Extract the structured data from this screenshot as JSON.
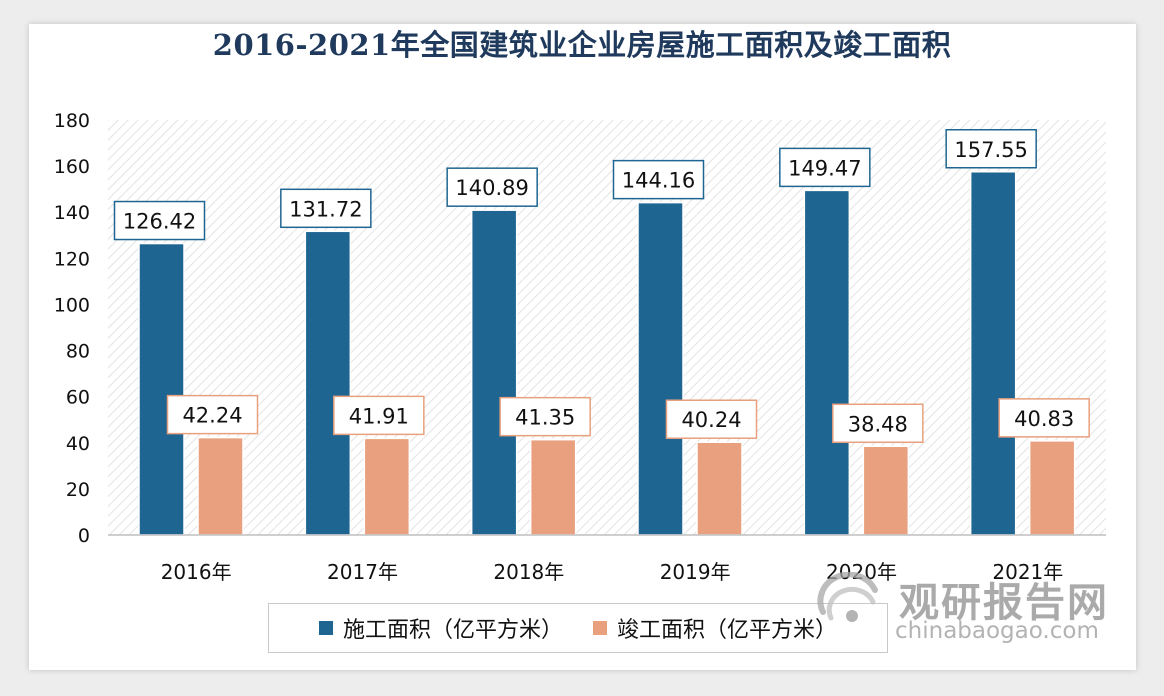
{
  "chart_data": {
    "type": "bar",
    "title": "2016-2021年全国建筑业企业房屋施工面积及竣工面积",
    "categories": [
      "2016年",
      "2017年",
      "2018年",
      "2019年",
      "2020年",
      "2021年"
    ],
    "series": [
      {
        "name": "施工面积（亿平方米）",
        "values": [
          126.42,
          131.72,
          140.89,
          144.16,
          149.47,
          157.55
        ],
        "color": "#1f6591"
      },
      {
        "name": "竣工面积（亿平方米）",
        "values": [
          42.24,
          41.91,
          41.35,
          40.24,
          38.48,
          40.83
        ],
        "color": "#e8a07e"
      }
    ],
    "ylim": [
      0,
      180
    ],
    "yticks": [
      0,
      20,
      40,
      60,
      80,
      100,
      120,
      140,
      160,
      180
    ],
    "grid": false,
    "data_labels": true,
    "legend_position": "bottom"
  },
  "watermark": {
    "brand_cn": "观研报告网",
    "brand_en": "chinabaogao.com"
  }
}
